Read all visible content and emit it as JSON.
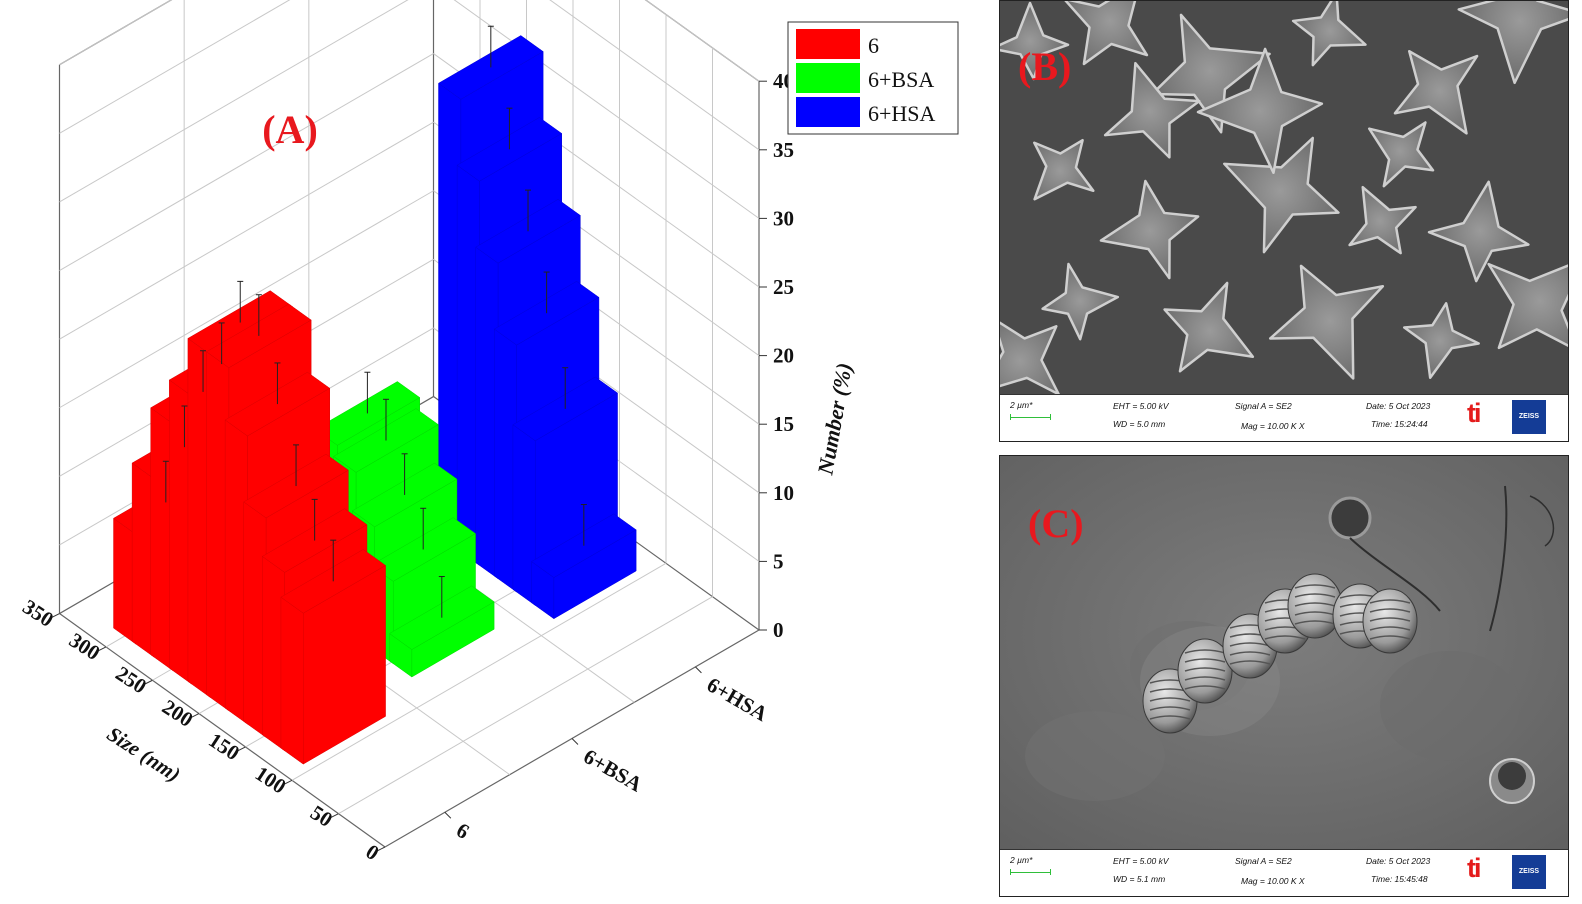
{
  "chart_data": {
    "type": "bar",
    "chart3d": true,
    "panel_label": "(A)",
    "xlabel": "Size (nm)",
    "ylabel": "Number (%)",
    "zlabel": "",
    "x_ticks": [
      "0",
      "50",
      "100",
      "150",
      "200",
      "250",
      "300",
      "350"
    ],
    "y_ticks": [
      "0",
      "5",
      "10",
      "15",
      "20",
      "25",
      "30",
      "35",
      "40"
    ],
    "category_ticks": [
      "6",
      "6+BSA",
      "6+HSA"
    ],
    "xlim": [
      0,
      350
    ],
    "ylim": [
      0,
      40
    ],
    "grid": true,
    "legend_position": "top-right",
    "colors": {
      "6": "#ff0000",
      "6+BSA": "#00ff00",
      "6+HSA": "#0000ff"
    },
    "series": [
      {
        "name": "6",
        "color": "#ff0000",
        "points": [
          {
            "size": 120,
            "value": 11
          },
          {
            "size": 140,
            "value": 13
          },
          {
            "size": 160,
            "value": 16
          },
          {
            "size": 180,
            "value": 21
          },
          {
            "size": 200,
            "value": 25
          },
          {
            "size": 220,
            "value": 25
          },
          {
            "size": 240,
            "value": 21
          },
          {
            "size": 260,
            "value": 18
          },
          {
            "size": 280,
            "value": 13
          },
          {
            "size": 300,
            "value": 8
          }
        ]
      },
      {
        "name": "6+BSA",
        "color": "#00ff00",
        "points": [
          {
            "size": 140,
            "value": 2
          },
          {
            "size": 160,
            "value": 6
          },
          {
            "size": 180,
            "value": 9
          },
          {
            "size": 200,
            "value": 12
          },
          {
            "size": 220,
            "value": 13
          }
        ]
      },
      {
        "name": "6+HSA",
        "color": "#0000ff",
        "points": [
          {
            "size": 120,
            "value": 3
          },
          {
            "size": 140,
            "value": 12
          },
          {
            "size": 160,
            "value": 18
          },
          {
            "size": 180,
            "value": 23
          },
          {
            "size": 200,
            "value": 28
          },
          {
            "size": 220,
            "value": 33
          }
        ]
      }
    ]
  },
  "sem_panels": [
    {
      "label": "(B)",
      "scale": "2 µm*",
      "eht": "EHT =  5.00 kV",
      "wd": "WD =  5.0 mm",
      "signal": "Signal A = SE2",
      "mag": "Mag =    10.00 K X",
      "date": "Date: 5 Oct 2023",
      "time": "Time: 15:24:44",
      "logo_ti": "ti",
      "logo_zeiss": "ZEISS"
    },
    {
      "label": "(C)",
      "scale": "2 µm*",
      "eht": "EHT =  5.00 kV",
      "wd": "WD =  5.1 mm",
      "signal": "Signal A = SE2",
      "mag": "Mag =    10.00 K X",
      "date": "Date: 5 Oct 2023",
      "time": "Time: 15:45:48",
      "logo_ti": "ti",
      "logo_zeiss": "ZEISS"
    }
  ]
}
